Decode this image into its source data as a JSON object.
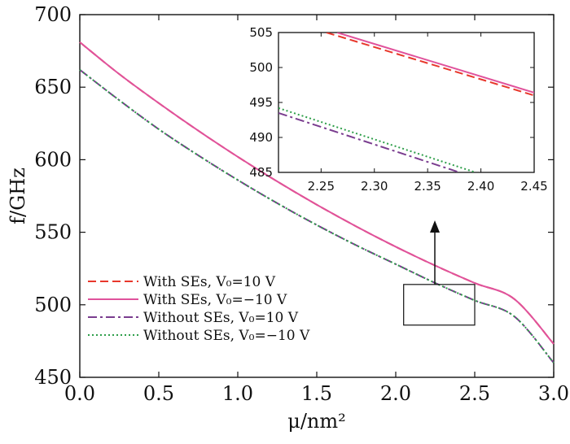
{
  "chart_data": {
    "type": "line",
    "xlabel": "μ/nm²",
    "ylabel": "f/GHz",
    "xlim": [
      0,
      3
    ],
    "ylim": [
      450,
      700
    ],
    "xticks": [
      "0.0",
      "0.5",
      "1.0",
      "1.5",
      "2.0",
      "2.5",
      "3.0"
    ],
    "yticks": [
      "450",
      "500",
      "550",
      "600",
      "650",
      "700"
    ],
    "grid": false,
    "legend_position": "bottom-left",
    "series": [
      {
        "name": "With SEs, V₀=10 V",
        "color": "#e8372b",
        "dash": "dashed",
        "x": [
          0,
          0.25,
          0.5,
          0.75,
          1.0,
          1.25,
          1.5,
          1.75,
          2.0,
          2.25,
          2.5,
          2.75,
          3.0
        ],
        "y": [
          681,
          659,
          639,
          620,
          602,
          585,
          569,
          554,
          540,
          527,
          515,
          504,
          473
        ]
      },
      {
        "name": "With SEs, V₀=−10 V",
        "color": "#e0529c",
        "dash": "solid",
        "x": [
          0,
          0.25,
          0.5,
          0.75,
          1.0,
          1.25,
          1.5,
          1.75,
          2.0,
          2.25,
          2.5,
          2.75,
          3.0
        ],
        "y": [
          681,
          659,
          639,
          620,
          602,
          585,
          569,
          554,
          540,
          527,
          515,
          504,
          473
        ]
      },
      {
        "name": "Without SEs, V₀=10 V",
        "color": "#7a3d8f",
        "dash": "dashdot",
        "x": [
          0,
          0.25,
          0.5,
          0.75,
          1.0,
          1.25,
          1.5,
          1.75,
          2.0,
          2.25,
          2.5,
          2.75,
          3.0
        ],
        "y": [
          662,
          641,
          621,
          603,
          586,
          570,
          555,
          541,
          528,
          515,
          503,
          492,
          460
        ]
      },
      {
        "name": "Without SEs, V₀=−10 V",
        "color": "#2e9e4a",
        "dash": "dotted",
        "x": [
          0,
          0.25,
          0.5,
          0.75,
          1.0,
          1.25,
          1.5,
          1.75,
          2.0,
          2.25,
          2.5,
          2.75,
          3.0
        ],
        "y": [
          662,
          641,
          621,
          603,
          586,
          570,
          555,
          541,
          528,
          515,
          503,
          492,
          460
        ]
      }
    ],
    "zoom_box": {
      "xlim": [
        2.05,
        2.5
      ],
      "ylim": [
        486,
        514
      ]
    },
    "inset": {
      "xlim": [
        2.21,
        2.45
      ],
      "ylim": [
        485,
        505
      ],
      "xticks": [
        "2.25",
        "2.30",
        "2.35",
        "2.40",
        "2.45"
      ],
      "yticks": [
        "485",
        "490",
        "495",
        "500",
        "505"
      ],
      "series": [
        {
          "color": "#e8372b",
          "dash": "dashed",
          "x": [
            2.255,
            2.45
          ],
          "y": [
            505,
            496.0
          ]
        },
        {
          "color": "#e0529c",
          "dash": "solid",
          "x": [
            2.265,
            2.45
          ],
          "y": [
            505,
            496.4
          ]
        },
        {
          "color": "#7a3d8f",
          "dash": "dashdot",
          "x": [
            2.21,
            2.38
          ],
          "y": [
            493.5,
            485
          ]
        },
        {
          "color": "#2e9e4a",
          "dash": "dotted",
          "x": [
            2.21,
            2.395
          ],
          "y": [
            494.2,
            485
          ]
        }
      ]
    }
  }
}
